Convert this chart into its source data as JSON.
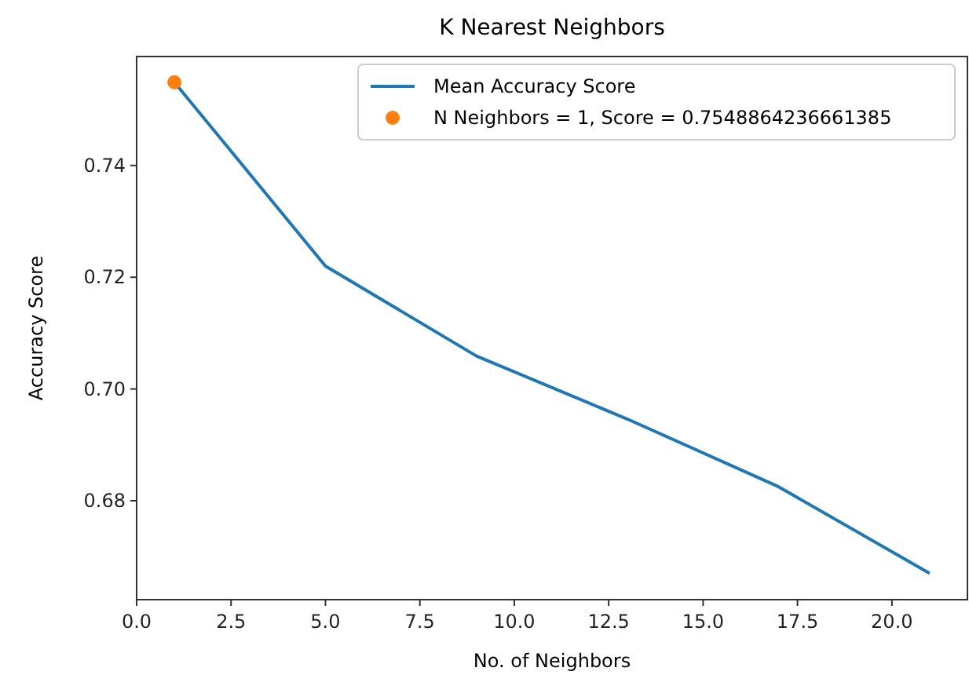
{
  "chart_data": {
    "type": "line",
    "title": "K Nearest Neighbors",
    "xlabel": "No. of Neighbors",
    "ylabel": "Accuracy Score",
    "x": [
      1,
      5,
      9,
      13,
      17,
      21
    ],
    "series": [
      {
        "name": "Mean Accuracy Score",
        "color": "#1f77b4",
        "values": [
          0.7549,
          0.722,
          0.7059,
          0.6946,
          0.6825,
          0.667
        ]
      },
      {
        "type": "scatter",
        "name": "N Neighbors = 1, Score = 0.7548864236661385",
        "color": "#ff7f0e",
        "x": [
          1
        ],
        "values": [
          0.7549
        ],
        "marker": "circle"
      }
    ],
    "xlim": [
      0,
      22
    ],
    "ylim": [
      0.6623,
      0.7595
    ],
    "xticks": [
      {
        "value": 0,
        "label": "0.0"
      },
      {
        "value": 2.5,
        "label": "2.5"
      },
      {
        "value": 5,
        "label": "5.0"
      },
      {
        "value": 7.5,
        "label": "7.5"
      },
      {
        "value": 10,
        "label": "10.0"
      },
      {
        "value": 12.5,
        "label": "12.5"
      },
      {
        "value": 15,
        "label": "15.0"
      },
      {
        "value": 17.5,
        "label": "17.5"
      },
      {
        "value": 20,
        "label": "20.0"
      }
    ],
    "yticks": [
      0.68,
      {
        "value": 0.7,
        "label": "0.70"
      },
      0.72,
      0.74
    ],
    "legend": "top right",
    "grid": false
  }
}
